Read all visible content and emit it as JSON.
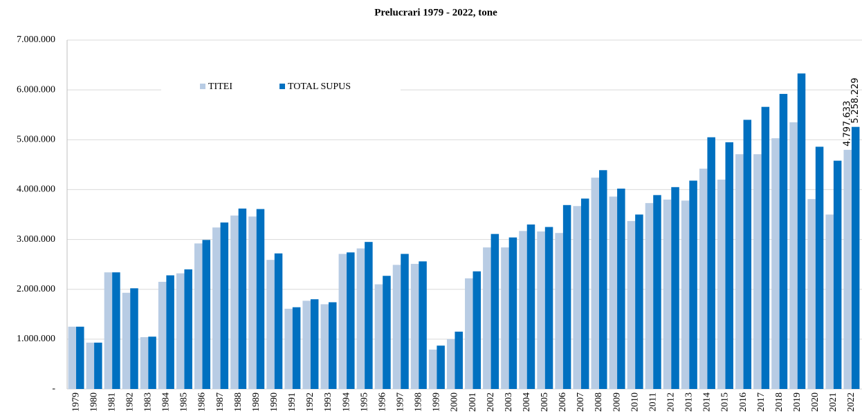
{
  "chart_data": {
    "type": "bar",
    "title": "Prelucrari  1979 - 2022, tone",
    "categories": [
      "1979",
      "1980",
      "1981",
      "1982",
      "1983",
      "1984",
      "1985",
      "1986",
      "1987",
      "1988",
      "1989",
      "1990",
      "1991",
      "1992",
      "1993",
      "1994",
      "1995",
      "1996",
      "1997",
      "1998",
      "1999",
      "2000",
      "2001",
      "2002",
      "2003",
      "2004",
      "2005",
      "2006",
      "2007",
      "2008",
      "2009",
      "2010",
      "2011",
      "2012",
      "2013",
      "2014",
      "2015",
      "2016",
      "2017",
      "2018",
      "2019",
      "2020",
      "2021",
      "2022"
    ],
    "series": [
      {
        "name": "TITEI",
        "color": "#b8cce4",
        "values": [
          1250000,
          930000,
          2340000,
          1930000,
          1040000,
          2150000,
          2320000,
          2920000,
          3240000,
          3480000,
          3460000,
          2590000,
          1610000,
          1770000,
          1700000,
          2710000,
          2820000,
          2100000,
          2490000,
          2510000,
          790000,
          1000000,
          2220000,
          2840000,
          2840000,
          3170000,
          3160000,
          3130000,
          3670000,
          4240000,
          3860000,
          3370000,
          3730000,
          3800000,
          3780000,
          4420000,
          4200000,
          4710000,
          4710000,
          5030000,
          5350000,
          3810000,
          3500000,
          4797633
        ],
        "value_labels": [
          null,
          null,
          null,
          null,
          null,
          null,
          null,
          null,
          null,
          null,
          null,
          null,
          null,
          null,
          null,
          null,
          null,
          null,
          null,
          null,
          null,
          null,
          null,
          null,
          null,
          null,
          null,
          null,
          null,
          null,
          null,
          null,
          null,
          null,
          null,
          null,
          null,
          null,
          null,
          null,
          null,
          null,
          null,
          "4.797.633"
        ]
      },
      {
        "name": "TOTAL SUPUS",
        "color": "#0070c0",
        "values": [
          1250000,
          930000,
          2340000,
          2020000,
          1050000,
          2280000,
          2400000,
          2990000,
          3340000,
          3620000,
          3610000,
          2720000,
          1640000,
          1800000,
          1740000,
          2740000,
          2950000,
          2270000,
          2710000,
          2560000,
          870000,
          1150000,
          2360000,
          3110000,
          3040000,
          3300000,
          3250000,
          3690000,
          3820000,
          4390000,
          4020000,
          3500000,
          3890000,
          4050000,
          4180000,
          5050000,
          4950000,
          5400000,
          5660000,
          5920000,
          6330000,
          4860000,
          4580000,
          5258229
        ],
        "value_labels": [
          null,
          null,
          null,
          null,
          null,
          null,
          null,
          null,
          null,
          null,
          null,
          null,
          null,
          null,
          null,
          null,
          null,
          null,
          null,
          null,
          null,
          null,
          null,
          null,
          null,
          null,
          null,
          null,
          null,
          null,
          null,
          null,
          null,
          null,
          null,
          null,
          null,
          null,
          null,
          null,
          null,
          null,
          null,
          "5.258.229"
        ]
      }
    ],
    "ylim": [
      0,
      7000000
    ],
    "yticks": [
      {
        "value": 0,
        "label": "-"
      },
      {
        "value": 1000000,
        "label": "1.000.000"
      },
      {
        "value": 2000000,
        "label": "2.000.000"
      },
      {
        "value": 3000000,
        "label": "3.000.000"
      },
      {
        "value": 4000000,
        "label": "4.000.000"
      },
      {
        "value": 5000000,
        "label": "5.000.000"
      },
      {
        "value": 6000000,
        "label": "6.000.000"
      },
      {
        "value": 7000000,
        "label": "7.000.000"
      }
    ],
    "grid": true,
    "legend": "top"
  }
}
